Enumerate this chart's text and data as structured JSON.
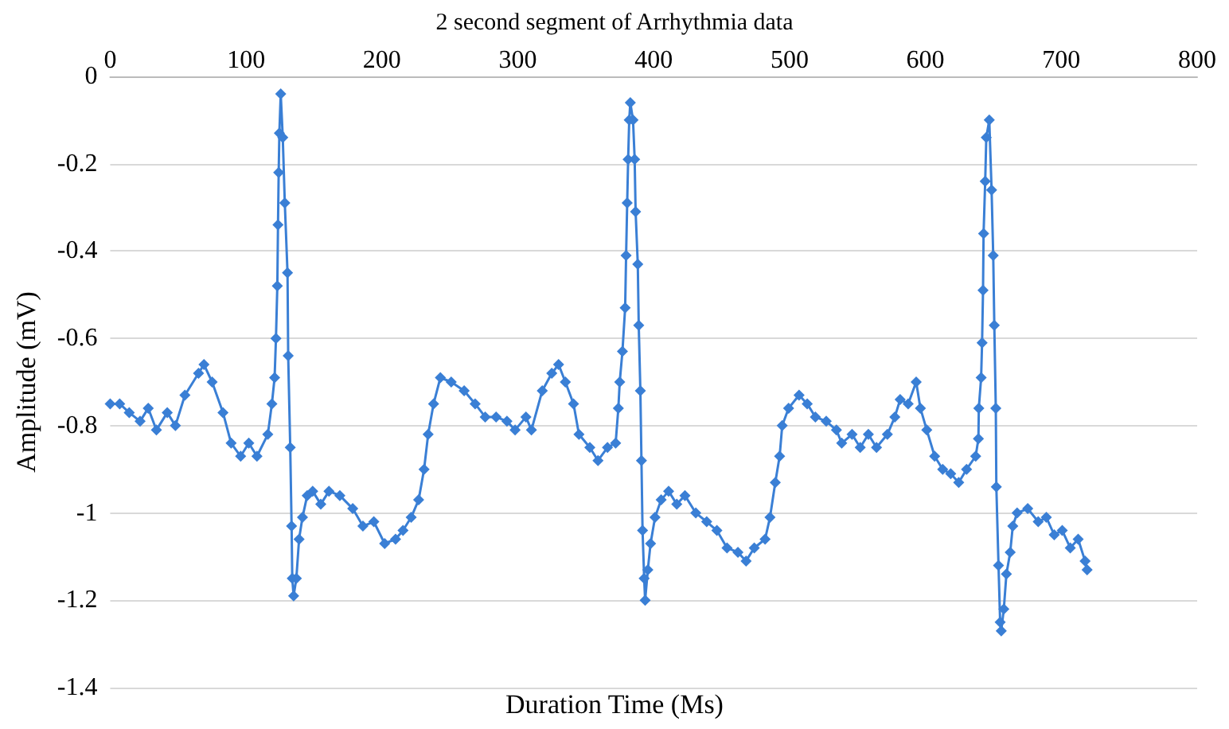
{
  "chart_data": {
    "type": "line",
    "title": "2 second segment of Arrhythmia data",
    "xlabel": "Duration Time (Ms)",
    "ylabel": "Amplitude (mV)",
    "xlim": [
      0,
      800
    ],
    "xticks": [
      0,
      100,
      200,
      300,
      400,
      500,
      600,
      700,
      800
    ],
    "ylim": [
      -1.4,
      0
    ],
    "yticks": [
      0,
      -0.2,
      -0.4,
      -0.6,
      -0.8,
      -1,
      -1.2,
      -1.4
    ],
    "grid": "y",
    "marker": "diamond",
    "line_style": "solid",
    "series": [
      {
        "color": "#3a7fd5",
        "x": [
          0,
          7,
          14,
          22,
          28,
          34,
          42,
          48,
          55,
          65,
          69,
          75,
          83,
          89,
          96,
          102,
          108,
          116,
          119,
          121,
          122,
          123,
          123.5,
          124,
          124.5,
          125.5,
          127,
          128.5,
          130.5,
          131,
          132.5,
          133.5,
          134,
          135,
          137,
          139,
          141.5,
          145,
          149,
          155,
          161,
          169,
          178.5,
          186,
          194,
          202,
          210,
          215.5,
          221.5,
          227,
          231,
          234,
          238,
          243,
          251,
          260.5,
          268.6,
          276,
          284,
          292,
          298,
          306,
          310,
          318,
          325,
          330,
          335,
          341,
          345,
          353,
          359,
          366,
          372,
          374,
          375,
          377,
          379,
          379.7,
          380.5,
          381.2,
          382,
          382.8,
          384.8,
          386,
          386.7,
          388.3,
          389,
          390.2,
          391,
          391.8,
          393,
          393.7,
          395.7,
          397.7,
          401,
          405.5,
          411,
          417,
          423,
          431,
          439,
          446.5,
          454,
          462,
          468,
          474,
          482,
          485.6,
          489.5,
          492.7,
          494.6,
          499.3,
          507,
          513,
          519,
          527,
          534.5,
          538.4,
          546,
          552,
          558,
          564,
          572,
          577.5,
          581.4,
          587.3,
          593.2,
          596.3,
          601,
          606.8,
          612.7,
          618.6,
          624.5,
          630.3,
          637,
          639,
          639.3,
          641,
          641.7,
          642.4,
          642.8,
          644,
          644.8,
          647,
          648.7,
          649.9,
          650.7,
          651.8,
          652.2,
          653.8,
          655,
          655.8,
          657.7,
          659.6,
          662.4,
          664.3,
          667.5,
          675.3,
          683,
          689,
          694.8,
          700.7,
          706.6,
          712.4,
          717.5,
          719
        ],
        "values": [
          -0.75,
          -0.75,
          -0.77,
          -0.79,
          -0.76,
          -0.81,
          -0.77,
          -0.8,
          -0.73,
          -0.68,
          -0.66,
          -0.7,
          -0.77,
          -0.84,
          -0.87,
          -0.84,
          -0.87,
          -0.82,
          -0.75,
          -0.69,
          -0.6,
          -0.48,
          -0.34,
          -0.22,
          -0.13,
          -0.04,
          -0.14,
          -0.29,
          -0.45,
          -0.64,
          -0.85,
          -1.03,
          -1.15,
          -1.19,
          -1.15,
          -1.06,
          -1.01,
          -0.96,
          -0.95,
          -0.98,
          -0.95,
          -0.96,
          -0.99,
          -1.03,
          -1.02,
          -1.07,
          -1.06,
          -1.04,
          -1.01,
          -0.97,
          -0.9,
          -0.82,
          -0.75,
          -0.69,
          -0.7,
          -0.72,
          -0.75,
          -0.78,
          -0.78,
          -0.79,
          -0.81,
          -0.78,
          -0.81,
          -0.72,
          -0.68,
          -0.66,
          -0.7,
          -0.75,
          -0.82,
          -0.85,
          -0.88,
          -0.85,
          -0.84,
          -0.76,
          -0.7,
          -0.63,
          -0.53,
          -0.41,
          -0.29,
          -0.19,
          -0.1,
          -0.06,
          -0.1,
          -0.19,
          -0.31,
          -0.43,
          -0.57,
          -0.72,
          -0.88,
          -1.04,
          -1.15,
          -1.2,
          -1.13,
          -1.07,
          -1.01,
          -0.97,
          -0.95,
          -0.98,
          -0.96,
          -1,
          -1.02,
          -1.04,
          -1.08,
          -1.09,
          -1.11,
          -1.08,
          -1.06,
          -1.01,
          -0.93,
          -0.87,
          -0.8,
          -0.76,
          -0.73,
          -0.75,
          -0.78,
          -0.79,
          -0.81,
          -0.84,
          -0.82,
          -0.85,
          -0.82,
          -0.85,
          -0.82,
          -0.78,
          -0.74,
          -0.75,
          -0.7,
          -0.76,
          -0.81,
          -0.87,
          -0.9,
          -0.91,
          -0.93,
          -0.9,
          -0.87,
          -0.83,
          -0.76,
          -0.69,
          -0.61,
          -0.49,
          -0.36,
          -0.24,
          -0.14,
          -0.1,
          -0.26,
          -0.41,
          -0.57,
          -0.76,
          -0.94,
          -1.12,
          -1.25,
          -1.27,
          -1.22,
          -1.14,
          -1.09,
          -1.03,
          -1,
          -0.99,
          -1.02,
          -1.01,
          -1.05,
          -1.04,
          -1.08,
          -1.06,
          -1.11,
          -1.13
        ]
      }
    ]
  }
}
